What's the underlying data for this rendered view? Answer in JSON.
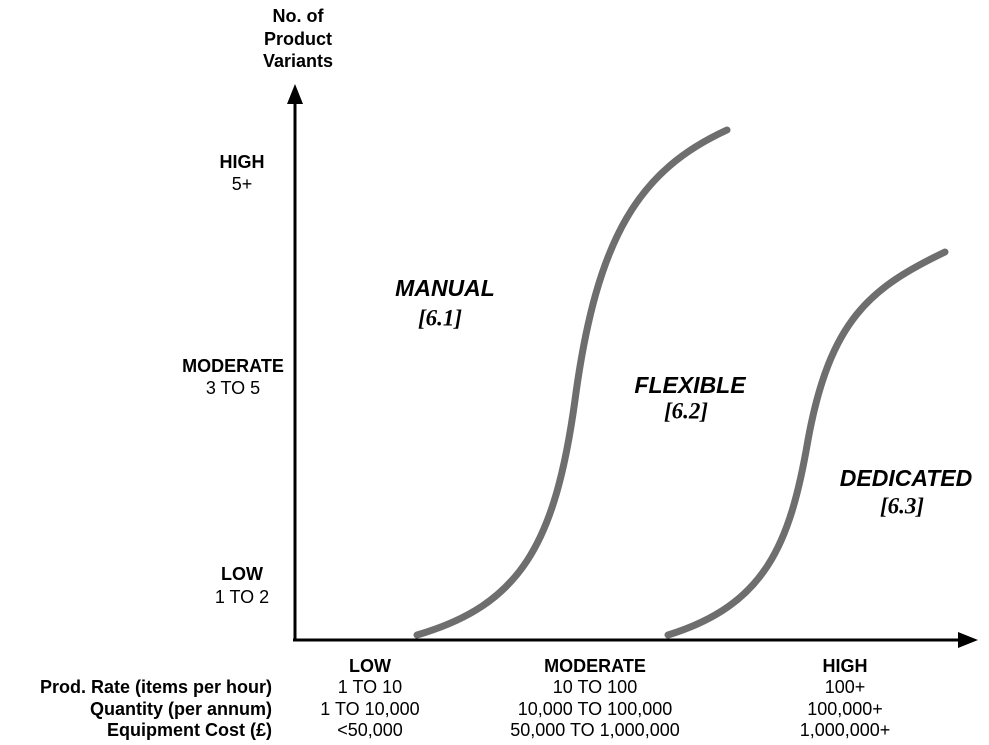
{
  "y_axis": {
    "title": [
      "No. of",
      "Product",
      "Variants"
    ],
    "levels": [
      {
        "label": "HIGH",
        "range": "5+"
      },
      {
        "label": "MODERATE",
        "range": "3 TO 5"
      },
      {
        "label": "LOW",
        "range": "1 TO 2"
      }
    ]
  },
  "regions": [
    {
      "name": "MANUAL",
      "ref": "[6.1]"
    },
    {
      "name": "FLEXIBLE",
      "ref": "[6.2]"
    },
    {
      "name": "DEDICATED",
      "ref": "[6.3]"
    }
  ],
  "x_axis": {
    "row_labels": [
      "Prod. Rate (items per hour)",
      "Quantity (per annum)",
      "Equipment Cost (£)"
    ],
    "columns": [
      {
        "label": "LOW",
        "values": [
          "1 TO 10",
          "1 TO 10,000",
          "<50,000"
        ]
      },
      {
        "label": "MODERATE",
        "values": [
          "10 TO 100",
          "10,000 TO 100,000",
          "50,000 TO 1,000,000"
        ]
      },
      {
        "label": "HIGH",
        "values": [
          "100+",
          "100,000+",
          "1,000,000+"
        ]
      }
    ]
  }
}
